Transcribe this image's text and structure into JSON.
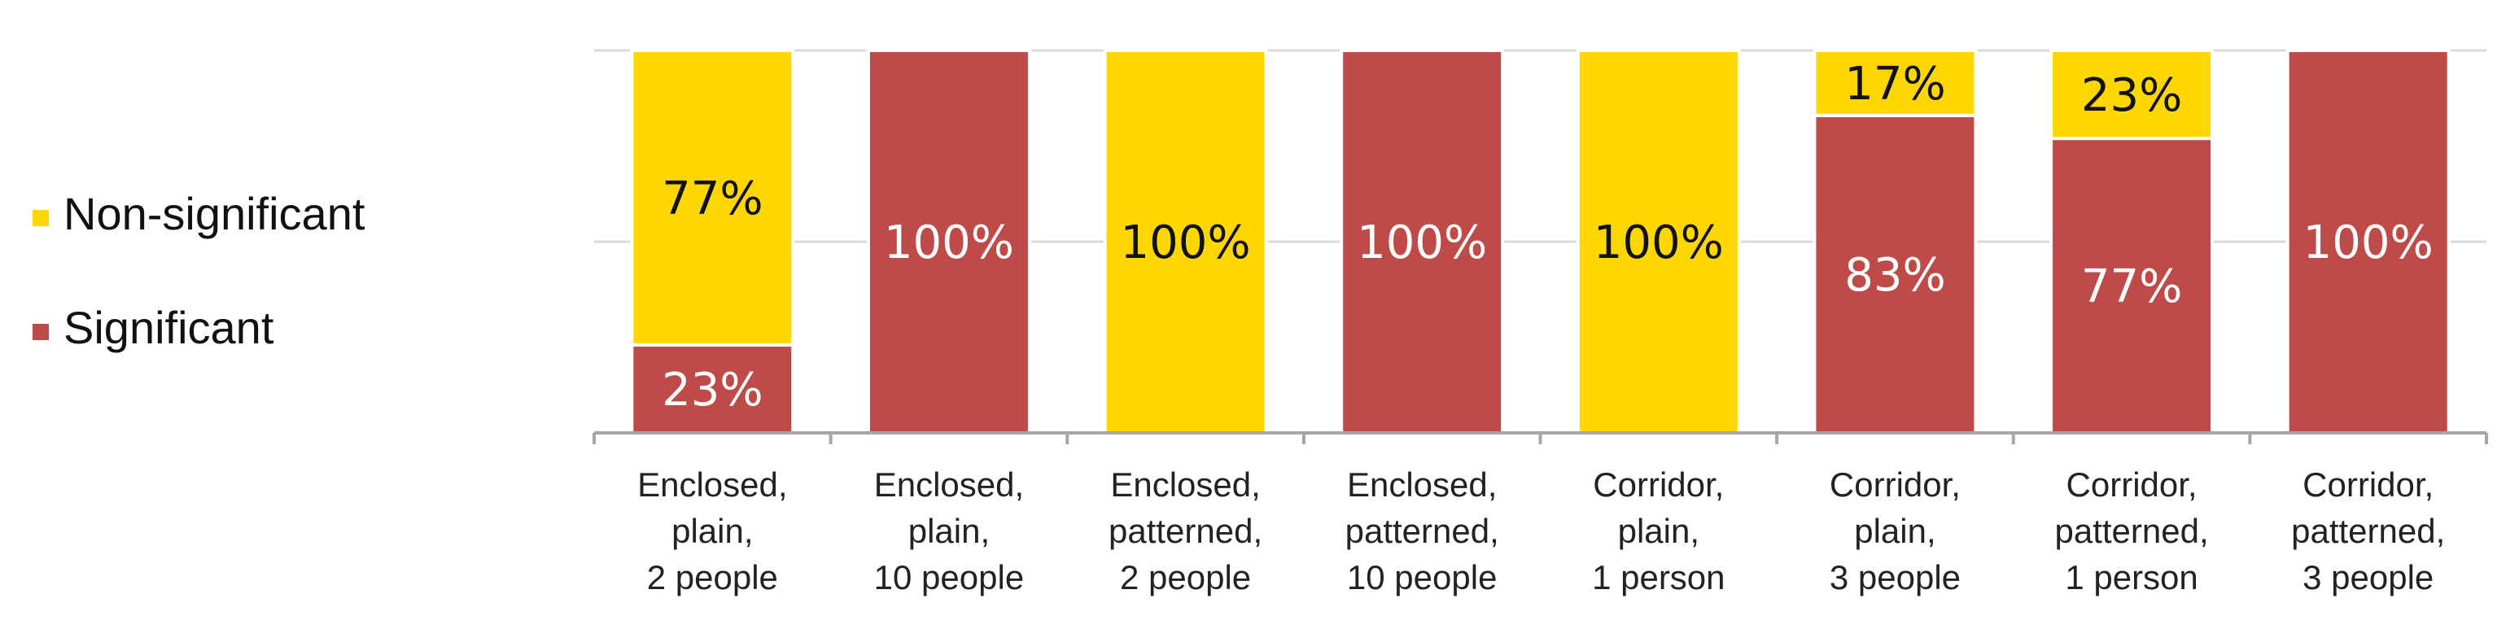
{
  "chart_data": {
    "type": "bar",
    "stacked": true,
    "percent": true,
    "ylim": [
      0,
      100
    ],
    "grid": true,
    "legend_position": "left",
    "categories": [
      [
        "Enclosed,",
        "plain,",
        "2 people"
      ],
      [
        "Enclosed,",
        "plain,",
        "10 people"
      ],
      [
        "Enclosed,",
        "patterned,",
        "2 people"
      ],
      [
        "Enclosed,",
        "patterned,",
        "10 people"
      ],
      [
        "Corridor,",
        "plain,",
        "1 person"
      ],
      [
        "Corridor,",
        "plain,",
        "3 people"
      ],
      [
        "Corridor,",
        "patterned,",
        "1 person"
      ],
      [
        "Corridor,",
        "patterned,",
        "3 people"
      ]
    ],
    "series": [
      {
        "name": "Significant",
        "color": "#BE4B48",
        "label_color": "#ffffff",
        "values": [
          23,
          100,
          0,
          100,
          0,
          83,
          77,
          100
        ]
      },
      {
        "name": "Non-significant",
        "color": "#FFD700",
        "label_color": "#111111",
        "values": [
          77,
          0,
          100,
          0,
          100,
          17,
          23,
          0
        ]
      }
    ],
    "data_labels": [
      [
        "23%",
        "100%",
        "",
        "100%",
        "",
        "83%",
        "77%",
        "100%"
      ],
      [
        "77%",
        "",
        "100%",
        "",
        "100%",
        "17%",
        "23%",
        ""
      ]
    ],
    "legend": [
      {
        "label": "Non-significant",
        "color": "#FFD700"
      },
      {
        "label": "Significant",
        "color": "#BE4B48"
      }
    ]
  }
}
